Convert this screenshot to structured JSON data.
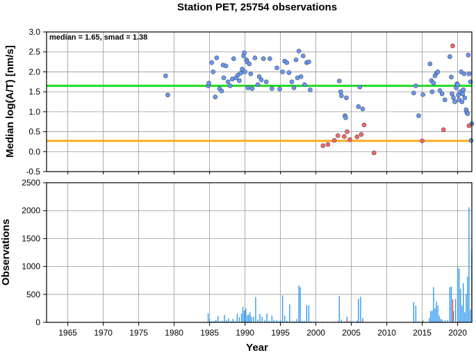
{
  "chart_data": [
    {
      "type": "scatter",
      "title": "Station PET, 25754 observations",
      "ylabel": "Median log(A/T) [nm/s]",
      "xlim": [
        1962,
        2022
      ],
      "ylim": [
        -0.5,
        3.0
      ],
      "xticks": [
        "1965",
        "1970",
        "1975",
        "1980",
        "1985",
        "1990",
        "1995",
        "2000",
        "2005",
        "2010",
        "2015",
        "2020"
      ],
      "yticks": [
        "-0.5",
        "0.0",
        "0.5",
        "1.0",
        "1.5",
        "2.0",
        "2.5",
        "3.0"
      ],
      "grid": true,
      "annotation": "median = 1.65, smad = 1.38",
      "reference_lines": [
        {
          "y": 1.65,
          "color": "#22dd22"
        },
        {
          "y": 0.27,
          "color": "#ffaa22"
        }
      ],
      "series": [
        {
          "color": "#6699ff",
          "points": [
            [
              1978.8,
              1.9
            ],
            [
              1979.1,
              1.42
            ],
            [
              1984.8,
              1.65
            ],
            [
              1984.9,
              1.72
            ],
            [
              1985.3,
              2.23
            ],
            [
              1985.5,
              2.0
            ],
            [
              1985.8,
              1.37
            ],
            [
              1986.0,
              2.35
            ],
            [
              1986.4,
              1.58
            ],
            [
              1986.7,
              1.52
            ],
            [
              1986.9,
              2.17
            ],
            [
              1987.0,
              1.85
            ],
            [
              1987.3,
              2.15
            ],
            [
              1987.6,
              1.75
            ],
            [
              1987.9,
              1.65
            ],
            [
              1988.2,
              1.82
            ],
            [
              1988.4,
              2.33
            ],
            [
              1988.7,
              1.85
            ],
            [
              1989.0,
              1.92
            ],
            [
              1989.2,
              1.78
            ],
            [
              1989.4,
              1.97
            ],
            [
              1989.6,
              2.07
            ],
            [
              1989.8,
              2.4
            ],
            [
              1989.9,
              2.48
            ],
            [
              1990.0,
              2.0
            ],
            [
              1990.2,
              2.3
            ],
            [
              1990.3,
              2.25
            ],
            [
              1990.4,
              1.6
            ],
            [
              1990.6,
              2.2
            ],
            [
              1990.8,
              1.95
            ],
            [
              1991.0,
              1.58
            ],
            [
              1991.4,
              2.35
            ],
            [
              1991.8,
              1.68
            ],
            [
              1992.0,
              1.88
            ],
            [
              1992.3,
              1.8
            ],
            [
              1992.6,
              2.33
            ],
            [
              1993.0,
              1.75
            ],
            [
              1993.5,
              2.33
            ],
            [
              1993.8,
              1.58
            ],
            [
              1994.5,
              2.1
            ],
            [
              1994.9,
              1.57
            ],
            [
              1995.3,
              2.0
            ],
            [
              1995.6,
              2.27
            ],
            [
              1995.9,
              2.23
            ],
            [
              1996.2,
              1.98
            ],
            [
              1996.6,
              1.75
            ],
            [
              1996.9,
              1.6
            ],
            [
              1997.2,
              2.3
            ],
            [
              1997.4,
              1.85
            ],
            [
              1997.6,
              2.52
            ],
            [
              1997.9,
              1.88
            ],
            [
              1998.2,
              2.4
            ],
            [
              1998.4,
              1.68
            ],
            [
              1998.7,
              2.23
            ],
            [
              1999.0,
              2.25
            ],
            [
              1999.2,
              1.55
            ],
            [
              2003.3,
              1.77
            ],
            [
              2003.5,
              1.5
            ],
            [
              2003.6,
              1.4
            ],
            [
              2004.1,
              0.9
            ],
            [
              2004.2,
              0.85
            ],
            [
              2004.3,
              1.35
            ],
            [
              2006.0,
              1.13
            ],
            [
              2006.2,
              1.62
            ],
            [
              2006.6,
              1.07
            ],
            [
              2013.8,
              1.47
            ],
            [
              2014.1,
              1.65
            ],
            [
              2014.5,
              0.9
            ],
            [
              2015.1,
              1.43
            ],
            [
              2016.1,
              2.2
            ],
            [
              2016.3,
              1.78
            ],
            [
              2016.4,
              1.5
            ],
            [
              2016.6,
              1.72
            ],
            [
              2016.8,
              1.9
            ],
            [
              2017.0,
              1.97
            ],
            [
              2017.2,
              2.0
            ],
            [
              2017.5,
              1.53
            ],
            [
              2017.8,
              1.45
            ],
            [
              2018.2,
              1.3
            ],
            [
              2018.9,
              2.38
            ],
            [
              2019.1,
              1.87
            ],
            [
              2019.2,
              1.45
            ],
            [
              2019.4,
              1.35
            ],
            [
              2019.6,
              1.25
            ],
            [
              2019.8,
              1.6
            ],
            [
              2019.9,
              1.7
            ],
            [
              2020.0,
              1.68
            ],
            [
              2020.1,
              1.42
            ],
            [
              2020.2,
              1.3
            ],
            [
              2020.4,
              1.5
            ],
            [
              2020.5,
              2.0
            ],
            [
              2020.6,
              1.25
            ],
            [
              2020.7,
              1.45
            ],
            [
              2020.8,
              1.55
            ],
            [
              2020.9,
              1.95
            ],
            [
              2021.0,
              1.35
            ],
            [
              2021.2,
              1.05
            ],
            [
              2021.3,
              0.98
            ],
            [
              2021.4,
              0.95
            ],
            [
              2021.5,
              2.42
            ],
            [
              2021.6,
              1.95
            ],
            [
              2021.8,
              1.75
            ],
            [
              2021.9,
              0.28
            ],
            [
              2022.0,
              0.7
            ]
          ]
        },
        {
          "color": "#ff6666",
          "points": [
            [
              2001.0,
              0.15
            ],
            [
              2001.7,
              0.18
            ],
            [
              2002.6,
              0.28
            ],
            [
              2003.1,
              0.4
            ],
            [
              2004.0,
              0.38
            ],
            [
              2004.4,
              0.5
            ],
            [
              2004.8,
              0.3
            ],
            [
              2005.8,
              0.37
            ],
            [
              2006.4,
              0.43
            ],
            [
              2006.8,
              0.67
            ],
            [
              2008.2,
              -0.03
            ],
            [
              2015.0,
              0.27
            ],
            [
              2018.0,
              0.55
            ],
            [
              2019.3,
              2.65
            ],
            [
              2021.6,
              0.65
            ]
          ]
        }
      ]
    },
    {
      "type": "bar",
      "xlabel": "Year",
      "ylabel": "Observations",
      "xlim": [
        1962,
        2022
      ],
      "ylim": [
        0,
        2500
      ],
      "xticks": [
        "1965",
        "1970",
        "1975",
        "1980",
        "1985",
        "1990",
        "1995",
        "2000",
        "2005",
        "2010",
        "2015",
        "2020"
      ],
      "yticks": [
        "0",
        "500",
        "1000",
        "1500",
        "2000",
        "2500"
      ],
      "grid": true,
      "series": [
        {
          "color": "#3399ee",
          "points": [
            [
              1978.8,
              10
            ],
            [
              1979.1,
              8
            ],
            [
              1984.8,
              160
            ],
            [
              1985.0,
              60
            ],
            [
              1985.3,
              20
            ],
            [
              1985.6,
              25
            ],
            [
              1985.9,
              45
            ],
            [
              1986.2,
              110
            ],
            [
              1986.5,
              20
            ],
            [
              1986.8,
              30
            ],
            [
              1987.1,
              135
            ],
            [
              1987.4,
              40
            ],
            [
              1987.7,
              70
            ],
            [
              1988.0,
              20
            ],
            [
              1988.3,
              60
            ],
            [
              1988.6,
              25
            ],
            [
              1988.9,
              155
            ],
            [
              1989.2,
              90
            ],
            [
              1989.5,
              160
            ],
            [
              1989.7,
              280
            ],
            [
              1989.9,
              210
            ],
            [
              1990.1,
              250
            ],
            [
              1990.3,
              130
            ],
            [
              1990.5,
              140
            ],
            [
              1990.7,
              180
            ],
            [
              1990.9,
              100
            ],
            [
              1991.2,
              100
            ],
            [
              1991.5,
              450
            ],
            [
              1991.8,
              50
            ],
            [
              1992.1,
              150
            ],
            [
              1992.4,
              100
            ],
            [
              1992.8,
              40
            ],
            [
              1993.1,
              160
            ],
            [
              1993.4,
              30
            ],
            [
              1993.8,
              120
            ],
            [
              1994.1,
              40
            ],
            [
              1994.5,
              40
            ],
            [
              1994.8,
              20
            ],
            [
              1995.0,
              40
            ],
            [
              1995.3,
              480
            ],
            [
              1995.6,
              120
            ],
            [
              1995.9,
              30
            ],
            [
              1996.3,
              320
            ],
            [
              1996.7,
              20
            ],
            [
              1997.0,
              20
            ],
            [
              1997.3,
              60
            ],
            [
              1997.6,
              660
            ],
            [
              1997.8,
              630
            ],
            [
              1998.1,
              30
            ],
            [
              1998.4,
              20
            ],
            [
              1998.7,
              310
            ],
            [
              1999.0,
              300
            ],
            [
              1999.3,
              20
            ],
            [
              1999.7,
              15
            ],
            [
              2001.0,
              10
            ],
            [
              2001.7,
              10
            ],
            [
              2002.6,
              15
            ],
            [
              2003.1,
              20
            ],
            [
              2003.3,
              470
            ],
            [
              2003.6,
              50
            ],
            [
              2004.0,
              20
            ],
            [
              2004.4,
              100
            ],
            [
              2004.8,
              30
            ],
            [
              2005.2,
              20
            ],
            [
              2005.8,
              30
            ],
            [
              2006.0,
              420
            ],
            [
              2006.3,
              460
            ],
            [
              2006.6,
              80
            ],
            [
              2008.2,
              5
            ],
            [
              2013.8,
              360
            ],
            [
              2014.1,
              300
            ],
            [
              2014.5,
              20
            ],
            [
              2015.1,
              40
            ],
            [
              2016.0,
              80
            ],
            [
              2016.2,
              200
            ],
            [
              2016.4,
              210
            ],
            [
              2016.6,
              630
            ],
            [
              2016.8,
              250
            ],
            [
              2017.0,
              370
            ],
            [
              2017.2,
              300
            ],
            [
              2017.4,
              120
            ],
            [
              2017.6,
              60
            ],
            [
              2017.8,
              50
            ],
            [
              2018.2,
              40
            ],
            [
              2018.6,
              40
            ],
            [
              2018.9,
              630
            ],
            [
              2019.1,
              640
            ],
            [
              2019.4,
              200
            ],
            [
              2019.7,
              420
            ],
            [
              2020.0,
              1000
            ],
            [
              2020.2,
              960
            ],
            [
              2020.4,
              600
            ],
            [
              2020.6,
              300
            ],
            [
              2020.8,
              700
            ],
            [
              2021.0,
              180
            ],
            [
              2021.2,
              500
            ],
            [
              2021.4,
              820
            ],
            [
              2021.6,
              2060
            ],
            [
              2021.8,
              230
            ],
            [
              2022.0,
              1300
            ]
          ]
        },
        {
          "color": "#ff3333",
          "points": [
            [
              2019.3,
              410
            ],
            [
              2006.6,
              30
            ],
            [
              2004.4,
              40
            ],
            [
              2001.0,
              10
            ]
          ]
        }
      ]
    }
  ]
}
